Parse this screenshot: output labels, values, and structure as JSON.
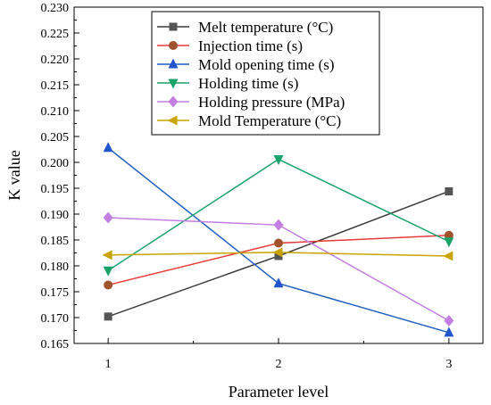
{
  "chart_data": {
    "type": "line",
    "xlabel": "Parameter level",
    "ylabel": "K value",
    "x": [
      1,
      2,
      3
    ],
    "xticks": [
      "1",
      "2",
      "3"
    ],
    "ylim": [
      0.165,
      0.23
    ],
    "yticks": [
      "0.165",
      "0.170",
      "0.175",
      "0.180",
      "0.185",
      "0.190",
      "0.195",
      "0.200",
      "0.205",
      "0.210",
      "0.215",
      "0.220",
      "0.225",
      "0.230"
    ],
    "legend_position": "top-center",
    "series": [
      {
        "name": "Melt temperature (°C)",
        "marker": "square",
        "color": "#3a3a3a",
        "marker_color": "#555555",
        "values": [
          0.1702,
          0.1819,
          0.1944
        ]
      },
      {
        "name": "Injection time (s)",
        "marker": "circle",
        "color": "#e83a3a",
        "marker_color": "#a0522d",
        "values": [
          0.1763,
          0.1844,
          0.1859
        ]
      },
      {
        "name": "Mold opening time (s)",
        "marker": "triangle-up",
        "color": "#1f5fbf",
        "marker_color": "#2255cc",
        "values": [
          0.2028,
          0.1766,
          0.1671
        ]
      },
      {
        "name": "Holding time (s)",
        "marker": "triangle-down",
        "color": "#1aa36b",
        "marker_color": "#1aa36b",
        "values": [
          0.1791,
          0.2006,
          0.1847
        ]
      },
      {
        "name": "Holding pressure (MPa)",
        "marker": "diamond",
        "color": "#c27ee0",
        "marker_color": "#c27ee0",
        "values": [
          0.1893,
          0.1879,
          0.1694
        ]
      },
      {
        "name": "Mold Temperature (°C)",
        "marker": "triangle-left",
        "color": "#c9a400",
        "marker_color": "#c9a400",
        "values": [
          0.1821,
          0.1826,
          0.1819
        ]
      }
    ]
  }
}
